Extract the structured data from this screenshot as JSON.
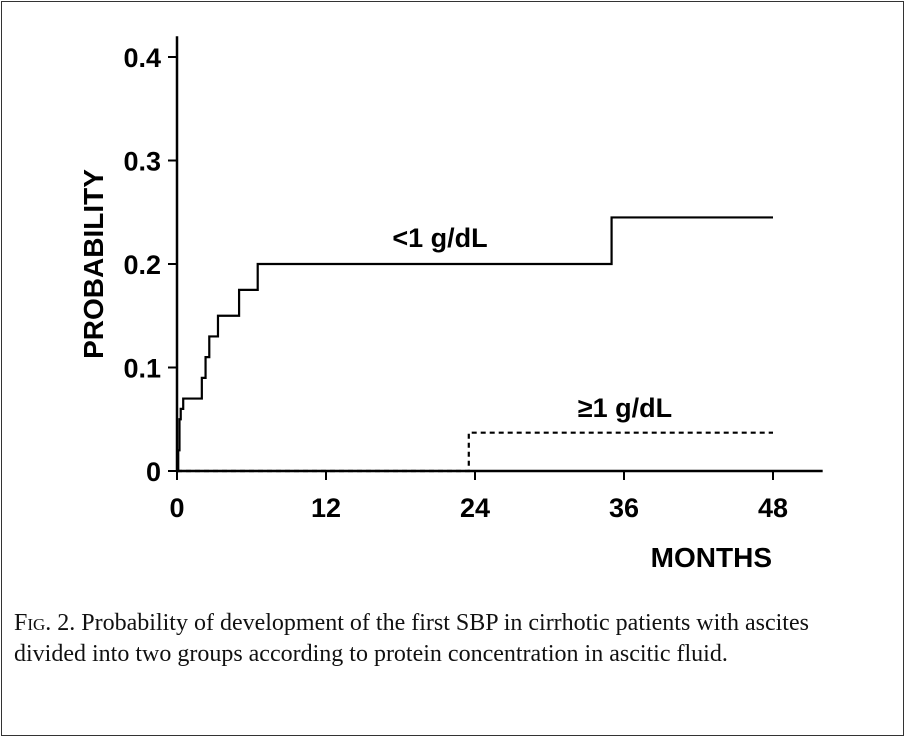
{
  "chart_data": {
    "type": "line",
    "xlabel": "MONTHS",
    "ylabel": "PROBABILITY",
    "xlim": [
      0,
      52
    ],
    "ylim": [
      0,
      0.42
    ],
    "x_ticks": [
      0,
      12,
      24,
      36,
      48
    ],
    "y_ticks": [
      0,
      0.1,
      0.2,
      0.3,
      0.4
    ],
    "x_tick_labels": [
      "0",
      "12",
      "24",
      "36",
      "48"
    ],
    "y_tick_labels": [
      "0",
      "0.1",
      "0.2",
      "0.3",
      "0.4"
    ],
    "step": true,
    "series": [
      {
        "name": "<1 g/dL",
        "style": "solid",
        "color": "#000000",
        "x": [
          0,
          0.1,
          0.2,
          0.3,
          0.5,
          2.0,
          2.3,
          2.6,
          3.3,
          5.0,
          6.5,
          35,
          48
        ],
        "y": [
          0,
          0.02,
          0.05,
          0.06,
          0.07,
          0.09,
          0.11,
          0.13,
          0.15,
          0.175,
          0.2,
          0.245,
          0.245
        ]
      },
      {
        "name": "≥1 g/dL",
        "style": "dashed",
        "color": "#000000",
        "x": [
          0,
          23.5,
          48
        ],
        "y": [
          0,
          0.037,
          0.037
        ]
      }
    ]
  },
  "caption": {
    "fig_label": "Fig. 2.",
    "text": "Probability of development of the first SBP in cirrhotic patients with ascites divided into two groups according to protein concentration in ascitic fluid."
  }
}
